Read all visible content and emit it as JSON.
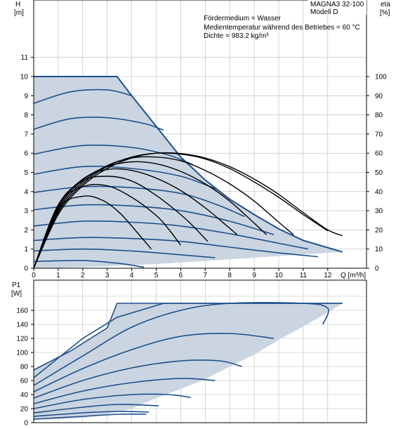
{
  "info": {
    "model_line1": "MAGNA3 32-100",
    "model_line2": "Modell D",
    "medium": "Fördermedium = Wasser",
    "temperature": "Medientemperatur während des Betriebes = 60 °C",
    "density": "Dichte = 983.2 kg/m³"
  },
  "colors": {
    "envelope": "#cad5e1",
    "curve": "#1d4f8b",
    "eta": "#000000"
  },
  "chart_data": [
    {
      "type": "line",
      "name": "head",
      "ylabel": "H",
      "yunit": "[m]",
      "y2label": "eta",
      "y2unit": "[%]",
      "xlabel": "Q [m³/h]",
      "xlim": [
        0,
        13
      ],
      "ylim": [
        0,
        11
      ],
      "y2lim": [
        0,
        110
      ],
      "xticks": [
        0,
        1,
        2,
        3,
        4,
        5,
        6,
        7,
        8,
        9,
        10,
        11,
        12
      ],
      "yticks": [
        0,
        1,
        2,
        3,
        4,
        5,
        6,
        7,
        8,
        9,
        10,
        11
      ],
      "y2ticks": [
        0,
        10,
        20,
        30,
        40,
        50,
        60,
        70,
        80,
        90,
        100
      ],
      "grid": true,
      "envelope": [
        [
          0,
          10
        ],
        [
          3.4,
          10
        ],
        [
          4,
          9
        ],
        [
          5,
          7.4
        ],
        [
          6,
          5.8
        ],
        [
          7,
          4.6
        ],
        [
          8,
          3.6
        ],
        [
          9,
          2.8
        ],
        [
          10,
          2.05
        ],
        [
          11,
          1.45
        ],
        [
          12.6,
          0.85
        ],
        [
          11,
          0.72
        ],
        [
          9,
          0.55
        ],
        [
          7,
          0.38
        ],
        [
          5,
          0.22
        ],
        [
          3,
          0.1
        ],
        [
          1,
          0.02
        ],
        [
          0,
          0
        ]
      ],
      "head_curves": [
        [
          [
            0,
            8.6
          ],
          [
            1.5,
            9.2
          ],
          [
            3,
            9.3
          ],
          [
            4,
            9
          ]
        ],
        [
          [
            0,
            7.25
          ],
          [
            1.5,
            7.8
          ],
          [
            3,
            7.85
          ],
          [
            4.5,
            7.55
          ],
          [
            5.3,
            7.2
          ]
        ],
        [
          [
            0,
            5.95
          ],
          [
            2,
            6.4
          ],
          [
            4,
            6.3
          ],
          [
            5.5,
            5.9
          ],
          [
            6.5,
            5.4
          ]
        ],
        [
          [
            0,
            4.9
          ],
          [
            2,
            5.3
          ],
          [
            4,
            5.2
          ],
          [
            6,
            4.8
          ],
          [
            7.5,
            4.1
          ]
        ],
        [
          [
            0,
            3.95
          ],
          [
            2,
            4.25
          ],
          [
            4,
            4.2
          ],
          [
            6,
            3.9
          ],
          [
            7.5,
            3.3
          ],
          [
            8.6,
            2.7
          ]
        ],
        [
          [
            0,
            3.05
          ],
          [
            2,
            3.3
          ],
          [
            4,
            3.25
          ],
          [
            6,
            3
          ],
          [
            8,
            2.45
          ],
          [
            9.8,
            1.75
          ]
        ],
        [
          [
            0,
            2.2
          ],
          [
            2,
            2.45
          ],
          [
            4,
            2.4
          ],
          [
            6,
            2.2
          ],
          [
            8,
            1.8
          ],
          [
            10,
            1.3
          ],
          [
            11.2,
            1
          ]
        ],
        [
          [
            0,
            1.45
          ],
          [
            2,
            1.6
          ],
          [
            4,
            1.55
          ],
          [
            6,
            1.4
          ],
          [
            8,
            1.1
          ],
          [
            10,
            0.8
          ],
          [
            11.6,
            0.6
          ]
        ],
        [
          [
            0,
            0.9
          ],
          [
            2,
            1
          ],
          [
            4,
            0.9
          ],
          [
            6,
            0.7
          ],
          [
            7.4,
            0.55
          ]
        ],
        [
          [
            0,
            0.35
          ],
          [
            2,
            0.4
          ],
          [
            3.5,
            0.25
          ],
          [
            4.5,
            0.05
          ]
        ]
      ],
      "eta_curves": [
        [
          [
            0,
            0
          ],
          [
            1,
            28
          ],
          [
            2,
            43
          ],
          [
            3,
            52
          ],
          [
            4,
            57.5
          ],
          [
            5,
            60
          ],
          [
            6,
            59.8
          ],
          [
            7,
            57.5
          ],
          [
            8,
            53
          ],
          [
            9,
            46.5
          ],
          [
            10,
            38.5
          ],
          [
            11,
            29
          ],
          [
            12,
            20
          ],
          [
            12.6,
            17
          ]
        ],
        [
          [
            0,
            0
          ],
          [
            1,
            29
          ],
          [
            2,
            44
          ],
          [
            3,
            53
          ],
          [
            4,
            58
          ],
          [
            5,
            60
          ],
          [
            6,
            59.5
          ],
          [
            7,
            57
          ],
          [
            8,
            52
          ],
          [
            9,
            45
          ],
          [
            10,
            37
          ],
          [
            11,
            28
          ],
          [
            12,
            19.5
          ]
        ],
        [
          [
            0,
            0
          ],
          [
            1,
            30
          ],
          [
            2,
            45
          ],
          [
            3,
            53.5
          ],
          [
            4,
            57.5
          ],
          [
            5,
            58
          ],
          [
            6,
            56
          ],
          [
            7,
            51
          ],
          [
            8,
            44
          ],
          [
            9,
            35
          ],
          [
            10,
            24
          ],
          [
            10.6,
            17.5
          ]
        ],
        [
          [
            0,
            0
          ],
          [
            1,
            31
          ],
          [
            2,
            46
          ],
          [
            3,
            53
          ],
          [
            4,
            55.5
          ],
          [
            5,
            54.5
          ],
          [
            6,
            50.5
          ],
          [
            7,
            44
          ],
          [
            8,
            35
          ],
          [
            9,
            23.5
          ],
          [
            9.5,
            17.5
          ]
        ],
        [
          [
            0,
            0
          ],
          [
            1,
            32
          ],
          [
            2,
            46.5
          ],
          [
            3,
            51.5
          ],
          [
            4,
            51
          ],
          [
            5,
            47
          ],
          [
            6,
            40.5
          ],
          [
            7,
            31.5
          ],
          [
            7.8,
            23
          ],
          [
            8.3,
            17.5
          ]
        ],
        [
          [
            0,
            0
          ],
          [
            1,
            33
          ],
          [
            2,
            45.5
          ],
          [
            3,
            48
          ],
          [
            4,
            45.5
          ],
          [
            5,
            38
          ],
          [
            6,
            28
          ],
          [
            6.5,
            22
          ],
          [
            7.1,
            14
          ]
        ],
        [
          [
            0,
            0
          ],
          [
            1,
            33
          ],
          [
            2,
            42.5
          ],
          [
            3,
            43
          ],
          [
            4,
            37
          ],
          [
            5,
            27.5
          ],
          [
            5.5,
            20.5
          ],
          [
            6,
            12
          ]
        ],
        [
          [
            0,
            0
          ],
          [
            1,
            31
          ],
          [
            2,
            37.5
          ],
          [
            2.8,
            35.5
          ],
          [
            3.5,
            29
          ],
          [
            4.2,
            19
          ],
          [
            4.8,
            10
          ]
        ]
      ]
    },
    {
      "type": "line",
      "name": "power",
      "ylabel": "P1",
      "yunit": "[W]",
      "xlim": [
        0,
        13
      ],
      "ylim": [
        0,
        180
      ],
      "yticks": [
        0,
        20,
        40,
        60,
        80,
        100,
        120,
        140,
        160
      ],
      "grid": true,
      "envelope": [
        [
          0,
          75
        ],
        [
          1.5,
          102
        ],
        [
          3,
          135
        ],
        [
          3.4,
          170
        ],
        [
          12.6,
          170
        ],
        [
          12,
          157
        ],
        [
          11,
          137
        ],
        [
          10,
          118
        ],
        [
          9,
          97
        ],
        [
          8,
          80
        ],
        [
          7,
          62
        ],
        [
          6,
          48
        ],
        [
          5,
          35
        ],
        [
          4,
          20
        ],
        [
          3,
          12
        ],
        [
          2,
          7
        ],
        [
          1,
          5
        ],
        [
          0,
          4
        ]
      ],
      "power_curves": [
        [
          [
            0,
            75
          ],
          [
            1.5,
            102
          ],
          [
            3,
            135
          ],
          [
            3.4,
            170
          ],
          [
            12.6,
            170
          ]
        ],
        [
          [
            0,
            64
          ],
          [
            2,
            120
          ],
          [
            3.4,
            150
          ],
          [
            5.3,
            170
          ],
          [
            12.6,
            170
          ]
        ],
        [
          [
            0,
            53
          ],
          [
            2,
            95
          ],
          [
            4,
            136
          ],
          [
            6,
            160
          ],
          [
            8,
            170
          ],
          [
            11,
            170
          ],
          [
            12,
            163
          ],
          [
            11.8,
            140
          ]
        ],
        [
          [
            0,
            44
          ],
          [
            2,
            77
          ],
          [
            4,
            104
          ],
          [
            6,
            123
          ],
          [
            8,
            127
          ],
          [
            9.8,
            120
          ]
        ],
        [
          [
            0,
            35
          ],
          [
            2,
            60
          ],
          [
            4,
            78
          ],
          [
            6,
            88
          ],
          [
            7.6,
            88
          ],
          [
            8.5,
            80
          ]
        ],
        [
          [
            0,
            27
          ],
          [
            2,
            45
          ],
          [
            4,
            57
          ],
          [
            6,
            63
          ],
          [
            7.4,
            60
          ]
        ],
        [
          [
            0,
            20
          ],
          [
            2,
            33
          ],
          [
            4,
            40
          ],
          [
            5.5,
            40
          ],
          [
            6.4,
            36
          ]
        ],
        [
          [
            0,
            14
          ],
          [
            2,
            22
          ],
          [
            3.5,
            26
          ],
          [
            5.1,
            24
          ]
        ],
        [
          [
            0,
            9
          ],
          [
            2,
            14
          ],
          [
            3.5,
            16
          ],
          [
            4.7,
            15
          ]
        ],
        [
          [
            0,
            5
          ],
          [
            2,
            9
          ],
          [
            3.5,
            12
          ],
          [
            4.6,
            12
          ]
        ]
      ]
    }
  ]
}
